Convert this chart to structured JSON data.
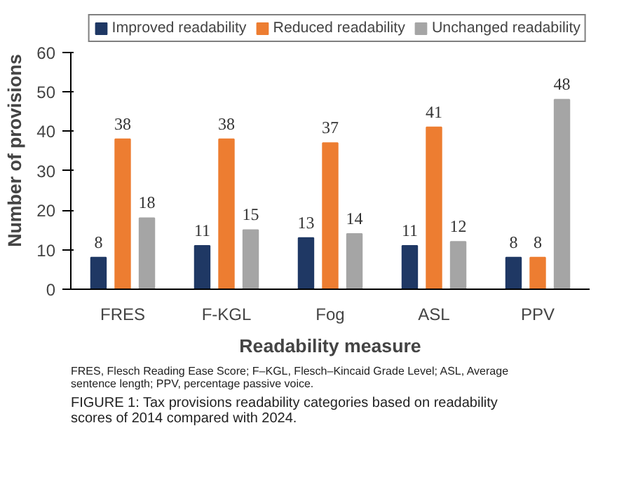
{
  "chart_data": {
    "type": "bar",
    "xlabel": "Readability measure",
    "ylabel": "Number of provisions",
    "categories": [
      "FRES",
      "F-KGL",
      "Fog",
      "ASL",
      "PPV"
    ],
    "series": [
      {
        "name": "Improved readability",
        "color": "#1f3864",
        "values": [
          8,
          11,
          13,
          11,
          8
        ]
      },
      {
        "name": "Reduced readability",
        "color": "#ed7d31",
        "values": [
          38,
          38,
          37,
          41,
          8
        ]
      },
      {
        "name": "Unchanged readability",
        "color": "#a5a5a5",
        "values": [
          18,
          15,
          14,
          12,
          48
        ]
      }
    ],
    "ylim": [
      0,
      60
    ],
    "yticks": [
      0,
      10,
      20,
      30,
      40,
      50,
      60
    ],
    "grid": false,
    "legend": "top",
    "data_labels": true,
    "annotations": [
      "FRES, Flesch Reading Ease Score; F–KGL, Flesch–Kincaid Grade Level; ASL, Average sentence length; PPV, percentage passive voice.",
      "FIGURE 1: Tax provisions readability categories based on readability scores of 2014 compared with 2024."
    ]
  }
}
